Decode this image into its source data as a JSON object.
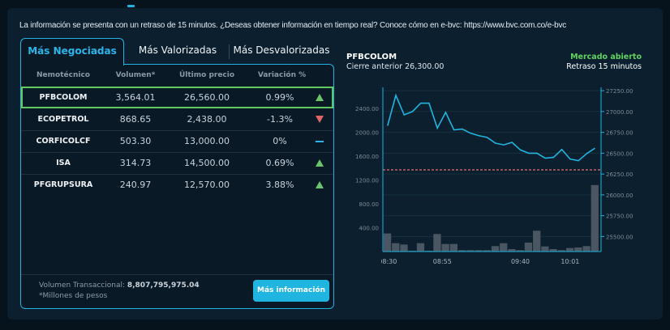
{
  "notice": "La información se presenta con un retraso de 15 minutos. ¿Deseas obtener información en tiempo real? Conoce cómo en e-bvc: https://www.bvc.com.co/e-bvc",
  "tabs": [
    "Más Negociadas",
    "Más Valorizadas",
    "Más Desvalorizadas"
  ],
  "active_tab": 0,
  "table": {
    "headers": [
      "Nemotécnico",
      "Volumen*",
      "Último precio",
      "Variación %"
    ],
    "rows": [
      {
        "symbol": "PFBCOLOM",
        "volume": "3,564.01",
        "price": "26,560.00",
        "change": "0.99%",
        "trend": "up"
      },
      {
        "symbol": "ECOPETROL",
        "volume": "868.65",
        "price": "2,438.00",
        "change": "-1.3%",
        "trend": "down"
      },
      {
        "symbol": "CORFICOLCF",
        "volume": "503.30",
        "price": "13,000.00",
        "change": "0%",
        "trend": "flat"
      },
      {
        "symbol": "ISA",
        "volume": "314.73",
        "price": "14,500.00",
        "change": "0.69%",
        "trend": "up"
      },
      {
        "symbol": "PFGRUPSURA",
        "volume": "240.97",
        "price": "12,570.00",
        "change": "3.88%",
        "trend": "up"
      }
    ],
    "selected_row": 0
  },
  "footer": {
    "volume_label": "Volumen Transaccional: ",
    "volume_value": "8,807,795,975.04",
    "note": "*Millones de pesos",
    "button": "Más información"
  },
  "chart_header": {
    "symbol": "PFBCOLOM",
    "previous_close": "Cierre anterior 26,300.00",
    "market_status": "Mercado abierto",
    "delay": "Retraso 15 minutos"
  },
  "colors": {
    "accent": "#1fb5e0",
    "up": "#6cc56c",
    "down": "#e06565",
    "market_open": "#5fd35f",
    "reference_line": "#e07070",
    "volume_bars": "#4a5661"
  },
  "chart_data": {
    "type": "line+bar",
    "line_series_values": [
      26830,
      27195,
      26960,
      27000,
      27100,
      27100,
      26800,
      26990,
      26780,
      26790,
      26740,
      26710,
      26690,
      26620,
      26600,
      26630,
      26540,
      26500,
      26500,
      26440,
      26450,
      26545,
      26430,
      26410,
      26495,
      26560
    ],
    "bar_series_values": [
      303,
      140,
      118,
      14,
      140,
      14,
      294,
      127,
      127,
      23,
      23,
      23,
      23,
      91,
      140,
      41,
      23,
      150,
      349,
      86,
      41,
      23,
      59,
      68,
      91,
      1114
    ],
    "reference_line": 26300,
    "x_tick_labels": [
      {
        "label": "08:30",
        "index": 0
      },
      {
        "label": "08:55",
        "index": 6.6
      },
      {
        "label": "09:40",
        "index": 16
      },
      {
        "label": "10:01",
        "index": 22
      }
    ],
    "left_axis": {
      "ticks": [
        "400.00",
        "800.00",
        "1200.00",
        "1600.00",
        "2000.00",
        "2400.00"
      ],
      "ylim": [
        0,
        2750
      ]
    },
    "right_axis": {
      "ticks": [
        "25500.00",
        "25750.00",
        "26000.00",
        "26250.00",
        "26500.00",
        "26750.00",
        "27000.00",
        "27250.00"
      ],
      "ylim": [
        25320,
        27290
      ]
    },
    "grid": true
  }
}
